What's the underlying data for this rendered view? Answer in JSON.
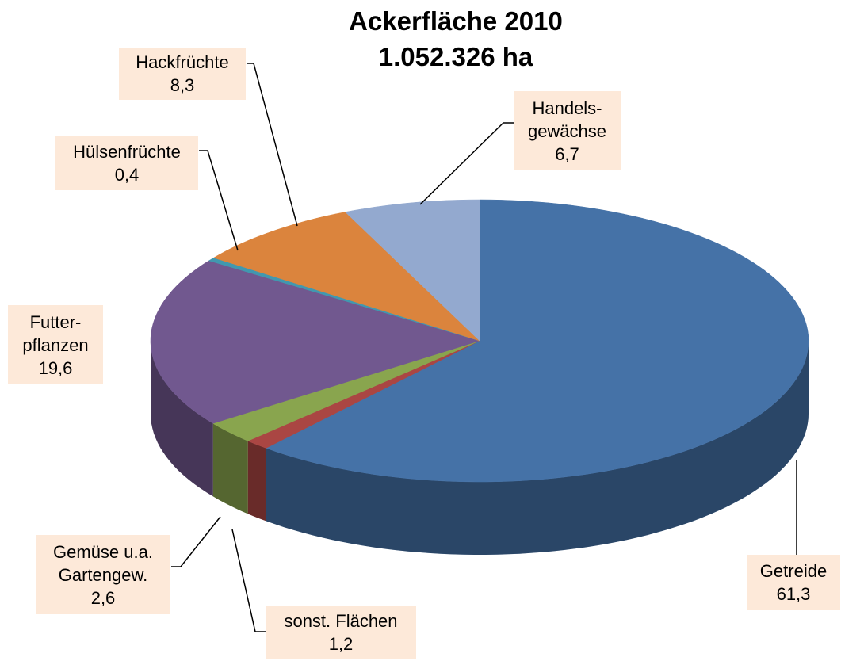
{
  "chart_data": {
    "type": "pie",
    "title": "Ackerfläche 2010",
    "subtitle": "1.052.326 ha",
    "categories": [
      "Getreide",
      "sonst. Flächen",
      "Gemüse u.a.\nGartengew.",
      "Futter-\npflanzen",
      "Hülsenfrüchte",
      "Hackfrüchte",
      "Handels-\ngewächse"
    ],
    "values": [
      61.3,
      1.2,
      2.6,
      19.6,
      0.4,
      8.3,
      6.7
    ],
    "value_labels": [
      "61,3",
      "1,2",
      "2,6",
      "19,6",
      "0,4",
      "8,3",
      "6,7"
    ],
    "colors": [
      "#4572a7",
      "#aa4643",
      "#89a54e",
      "#71588f",
      "#4198af",
      "#db843d",
      "#93a9cf"
    ]
  }
}
